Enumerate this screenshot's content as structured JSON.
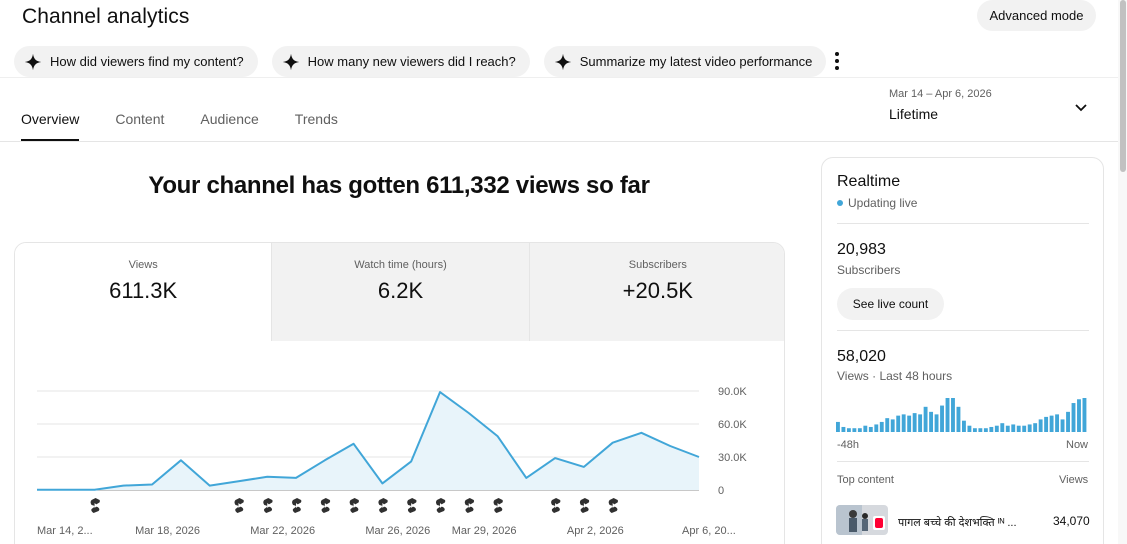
{
  "header": {
    "title": "Channel analytics",
    "advanced_mode_label": "Advanced mode",
    "chips": [
      {
        "label": "How did viewers find my content?",
        "icon": "sparkle-icon"
      },
      {
        "label": "How many new viewers did I reach?",
        "icon": "sparkle-icon"
      },
      {
        "label": "Summarize my latest video performance",
        "icon": "sparkle-icon"
      }
    ]
  },
  "tabs": [
    {
      "label": "Overview",
      "active": true
    },
    {
      "label": "Content",
      "active": false
    },
    {
      "label": "Audience",
      "active": false
    },
    {
      "label": "Trends",
      "active": false
    }
  ],
  "date_picker": {
    "range": "Mar 14 – Apr 6, 2026",
    "value": "Lifetime"
  },
  "main": {
    "headline": "Your channel has gotten 611,332 views so far",
    "metrics": [
      {
        "label": "Views",
        "value": "611.3K",
        "active": true
      },
      {
        "label": "Watch time (hours)",
        "value": "6.2K",
        "active": false
      },
      {
        "label": "Subscribers",
        "value": "+20.5K",
        "active": false
      }
    ]
  },
  "chart_data": {
    "type": "area",
    "x": [
      "Mar 14",
      "Mar 15",
      "Mar 16",
      "Mar 17",
      "Mar 18",
      "Mar 19",
      "Mar 20",
      "Mar 21",
      "Mar 22",
      "Mar 23",
      "Mar 24",
      "Mar 25",
      "Mar 26",
      "Mar 27",
      "Mar 28",
      "Mar 29",
      "Mar 30",
      "Mar 31",
      "Apr 1",
      "Apr 2",
      "Apr 3",
      "Apr 4",
      "Apr 5",
      "Apr 6"
    ],
    "values": [
      300,
      300,
      300,
      4000,
      5000,
      27000,
      4000,
      8000,
      12000,
      11000,
      27000,
      42000,
      6000,
      26000,
      89000,
      70000,
      49000,
      11000,
      29000,
      21000,
      43000,
      52000,
      40000,
      30000
    ],
    "x_tick_labels": [
      "Mar 14, 2...",
      "Mar 18, 2026",
      "Mar 22, 2026",
      "Mar 26, 2026",
      "Mar 29, 2026",
      "Apr 2, 2026",
      "Apr 6, 20..."
    ],
    "x_tick_indices": [
      0,
      4,
      8,
      12,
      15,
      19,
      23
    ],
    "y_ticks": [
      0,
      30000,
      60000,
      90000
    ],
    "y_tick_labels": [
      "0",
      "30.0K",
      "60.0K",
      "90.0K"
    ],
    "ylim": [
      0,
      95000
    ],
    "line_color": "#41a6d8",
    "fill_color": "#e8f4fa",
    "grid": true,
    "shorts_markers": [
      2,
      7,
      8,
      9,
      10,
      11,
      12,
      13,
      14,
      15,
      16,
      18,
      19,
      20
    ]
  },
  "realtime": {
    "title": "Realtime",
    "status": "Updating live",
    "subscribers_value": "20,983",
    "subscribers_label": "Subscribers",
    "live_count_label": "See live count",
    "views_value": "58,020",
    "views_label": "Views · Last 48 hours",
    "bar_left_label": "-48h",
    "bar_right_label": "Now",
    "hourly_views": [
      8,
      4,
      3,
      3,
      3,
      5,
      4,
      6,
      8,
      11,
      10,
      13,
      14,
      13,
      15,
      14,
      20,
      16,
      14,
      21,
      27,
      27,
      20,
      9,
      5,
      3,
      3,
      3,
      4,
      5,
      7,
      5,
      6,
      5,
      5,
      6,
      7,
      10,
      12,
      13,
      14,
      10,
      16,
      23,
      26,
      27
    ],
    "top_content_label": "Top content",
    "views_col_label": "Views",
    "top_content": [
      {
        "title": "पागल बच्चे की देशभक्ति ᴵᴺ ...",
        "views": "34,070"
      }
    ]
  }
}
